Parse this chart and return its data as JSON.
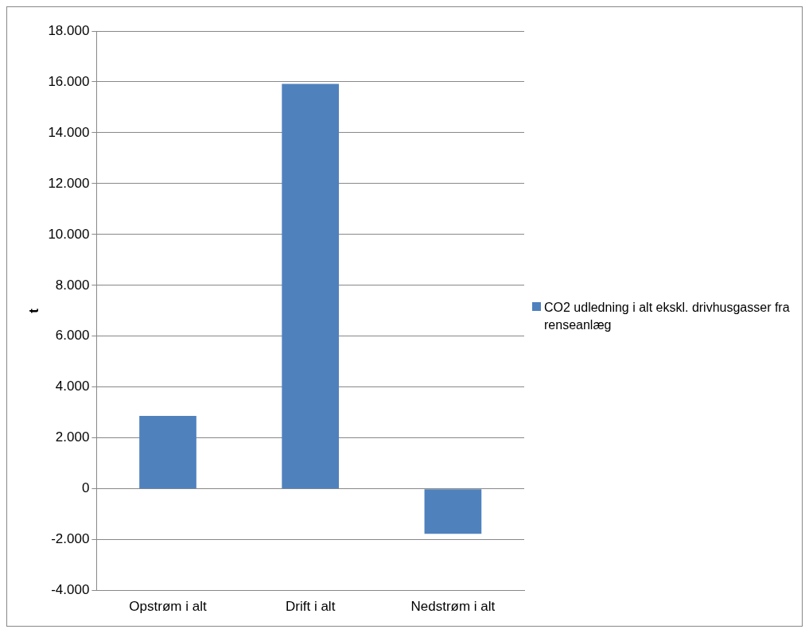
{
  "chart_data": {
    "type": "bar",
    "ylabel": "t",
    "categories": [
      "Opstrøm i alt",
      "Drift i alt",
      "Nedstrøm i alt"
    ],
    "series": [
      {
        "name": "CO2 udledning i alt ekskl. drivhusgasser fra renseanlæg",
        "color": "#4f81bd",
        "values": [
          2870,
          15920,
          -1770
        ]
      }
    ],
    "ylim": [
      -4000,
      18000
    ],
    "yticks": [
      {
        "value": -4000,
        "label": "-4.000"
      },
      {
        "value": -2000,
        "label": "-2.000"
      },
      0,
      {
        "value": 2000,
        "label": "2.000"
      },
      {
        "value": 4000,
        "label": "4.000"
      },
      {
        "value": 6000,
        "label": "6.000"
      },
      {
        "value": 8000,
        "label": "8.000"
      },
      {
        "value": 10000,
        "label": "10.000"
      },
      {
        "value": 12000,
        "label": "12.000"
      },
      {
        "value": 14000,
        "label": "14.000"
      },
      {
        "value": 16000,
        "label": "16.000"
      },
      {
        "value": 18000,
        "label": "18.000"
      }
    ],
    "grid": "y",
    "legend": "right"
  }
}
